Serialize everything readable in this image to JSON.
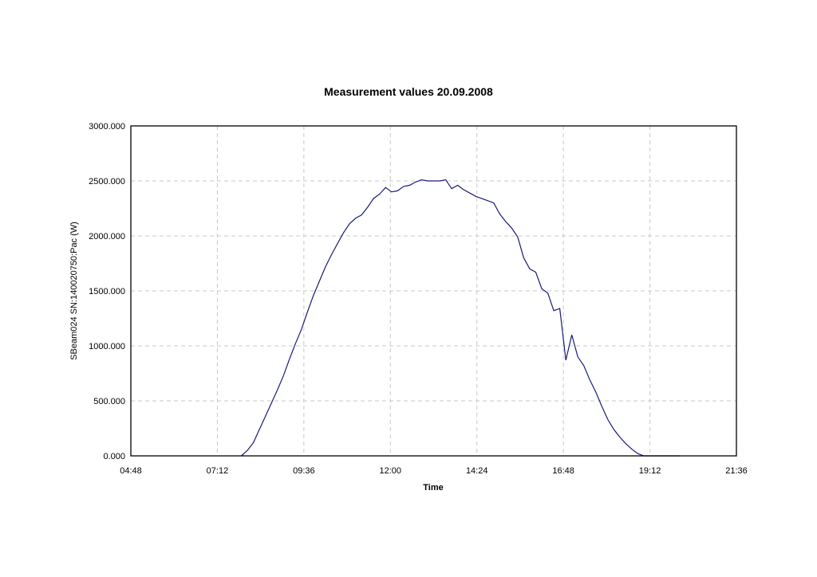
{
  "chart_data": {
    "type": "line",
    "title": "Measurement values 20.09.2008",
    "xlabel": "Time",
    "ylabel": "SBeam024 SN:140020750:Pac (W)",
    "x_ticks": [
      "04:48",
      "07:12",
      "09:36",
      "12:00",
      "14:24",
      "16:48",
      "19:12",
      "21:36"
    ],
    "y_ticks": [
      "0.000",
      "500.000",
      "1000.000",
      "1500.000",
      "2000.000",
      "2500.000",
      "3000.000"
    ],
    "xlim": [
      "04:48",
      "21:36"
    ],
    "ylim": [
      0,
      3000
    ],
    "grid": true,
    "legend": "none",
    "colors": {
      "series": "#1b1b78",
      "grid": "#c8c8c8",
      "frame": "#000000"
    },
    "series": [
      {
        "x": [
          "07:52",
          "08:02",
          "08:12",
          "08:22",
          "08:32",
          "08:42",
          "08:52",
          "09:02",
          "09:12",
          "09:22",
          "09:32",
          "09:42",
          "09:52",
          "10:02",
          "10:12",
          "10:22",
          "10:32",
          "10:42",
          "10:52",
          "11:02",
          "11:12",
          "11:22",
          "11:32",
          "11:42",
          "11:52",
          "12:02",
          "12:12",
          "12:22",
          "12:32",
          "12:42",
          "12:52",
          "13:02",
          "13:12",
          "13:22",
          "13:32",
          "13:42",
          "13:52",
          "14:02",
          "14:12",
          "14:22",
          "14:32",
          "14:42",
          "14:52",
          "15:02",
          "15:12",
          "15:22",
          "15:32",
          "15:42",
          "15:52",
          "16:02",
          "16:12",
          "16:22",
          "16:32",
          "16:42",
          "16:52",
          "17:02",
          "17:12",
          "17:22",
          "17:32",
          "17:42",
          "17:52",
          "18:02",
          "18:12",
          "18:22",
          "18:32",
          "18:42",
          "18:52",
          "19:02",
          "19:12",
          "19:22",
          "19:32",
          "19:42",
          "19:52",
          "20:02"
        ],
        "y": [
          0,
          50,
          120,
          240,
          360,
          480,
          600,
          730,
          880,
          1020,
          1150,
          1310,
          1460,
          1590,
          1720,
          1830,
          1930,
          2030,
          2110,
          2160,
          2190,
          2260,
          2340,
          2380,
          2440,
          2400,
          2410,
          2450,
          2460,
          2490,
          2510,
          2500,
          2500,
          2500,
          2510,
          2430,
          2460,
          2420,
          2390,
          2360,
          2340,
          2320,
          2300,
          2200,
          2130,
          2070,
          1990,
          1800,
          1700,
          1670,
          1520,
          1480,
          1320,
          1340,
          870,
          1100,
          900,
          820,
          690,
          580,
          450,
          330,
          240,
          170,
          110,
          60,
          20,
          0,
          0,
          0,
          0,
          0,
          0,
          0
        ]
      }
    ]
  }
}
